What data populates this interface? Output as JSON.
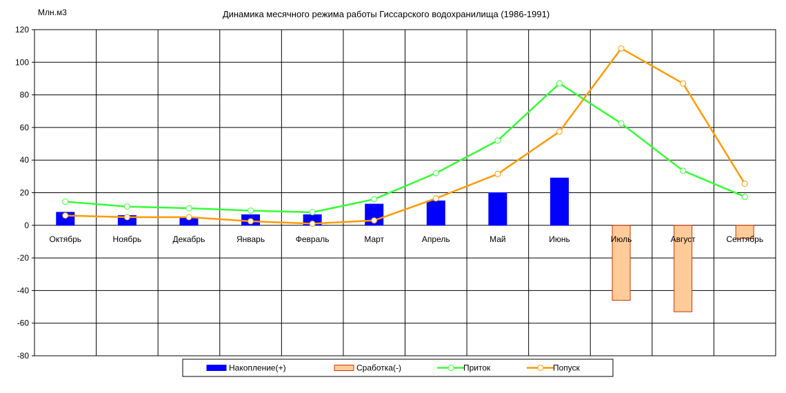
{
  "chart_data": {
    "type": "bar",
    "title": "Динамика месячного режима работы Гиссарского водохранилища (1986-1991)",
    "ylabel": "Млн.м3",
    "ylim": [
      -80,
      120
    ],
    "yticks": [
      -80,
      -60,
      -40,
      -20,
      0,
      20,
      40,
      60,
      80,
      100,
      120
    ],
    "grid": true,
    "legend_position": "bottom",
    "categories": [
      "Октябрь",
      "Ноябрь",
      "Декабрь",
      "Январь",
      "Февраль",
      "Март",
      "Апрель",
      "Май",
      "Июнь",
      "Июль",
      "Август",
      "Сентябрь"
    ],
    "series": [
      {
        "name": "Накопление(+)",
        "kind": "bar",
        "color": "#0000ff",
        "border": "#0000ff",
        "values": [
          8,
          6,
          5,
          6.5,
          6.5,
          13,
          15,
          20,
          29,
          0,
          0,
          0
        ]
      },
      {
        "name": "Сработка(-)",
        "kind": "bar",
        "color": "#ffcc99",
        "border": "#cc3300",
        "values": [
          0,
          0,
          0,
          0,
          0,
          0,
          0,
          0,
          0,
          -46,
          -53,
          -8
        ]
      },
      {
        "name": "Приток",
        "kind": "line",
        "color": "#33ff33",
        "values": [
          14.5,
          11.5,
          10.5,
          9,
          8,
          16,
          32,
          52,
          87,
          62.5,
          33.5,
          17.5
        ]
      },
      {
        "name": "Попуск",
        "kind": "line",
        "color": "#ff9900",
        "values": [
          6,
          5,
          5,
          2.5,
          1,
          3,
          16.5,
          31.5,
          57.5,
          108.5,
          87,
          25.5
        ]
      }
    ]
  }
}
